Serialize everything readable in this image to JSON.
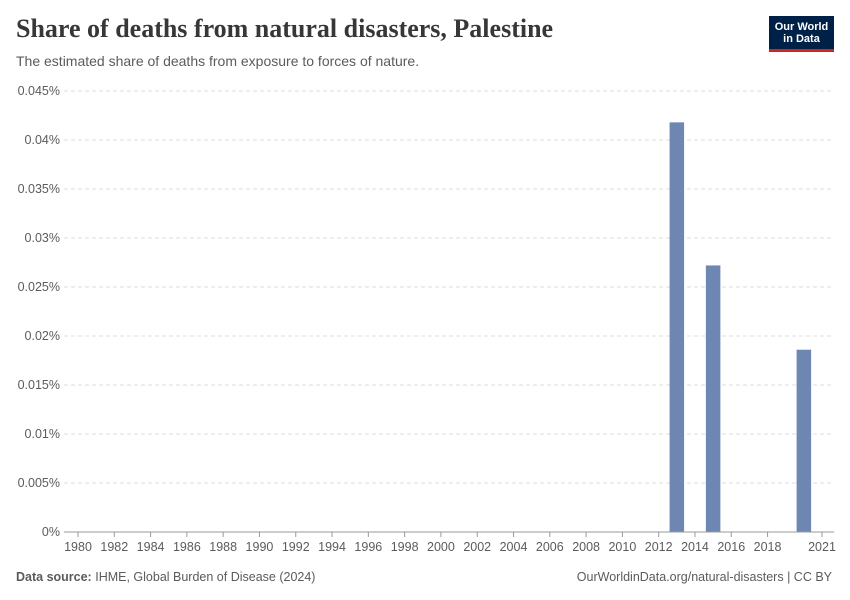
{
  "header": {
    "title": "Share of deaths from natural disasters, Palestine",
    "subtitle": "The estimated share of deaths from exposure to forces of nature.",
    "logo_line1": "Our World",
    "logo_line2": "in Data"
  },
  "footer": {
    "source_label": "Data source:",
    "source_value": "IHME, Global Burden of Disease (2024)",
    "url_license": "OurWorldinData.org/natural-disasters | CC BY"
  },
  "colors": {
    "bar": "#6d87b2",
    "grid": "#dddddd",
    "axis": "#999999"
  },
  "chart_data": {
    "type": "bar",
    "title": "Share of deaths from natural disasters, Palestine",
    "xlabel": "",
    "ylabel": "",
    "unit": "%",
    "xlim": [
      1980,
      2021
    ],
    "ylim": [
      0,
      0.045
    ],
    "x_ticks": [
      "1980",
      "1982",
      "1984",
      "1986",
      "1988",
      "1990",
      "1992",
      "1994",
      "1996",
      "1998",
      "2000",
      "2002",
      "2004",
      "2006",
      "2008",
      "2010",
      "2012",
      "2014",
      "2016",
      "2018",
      "2021"
    ],
    "y_ticks": [
      "0%",
      "0.005%",
      "0.01%",
      "0.015%",
      "0.02%",
      "0.025%",
      "0.03%",
      "0.035%",
      "0.04%",
      "0.045%"
    ],
    "grid": true,
    "series": [
      {
        "name": "Palestine",
        "x": [
          2013,
          2015,
          2020
        ],
        "values": [
          0.0418,
          0.0272,
          0.0186
        ]
      }
    ]
  }
}
